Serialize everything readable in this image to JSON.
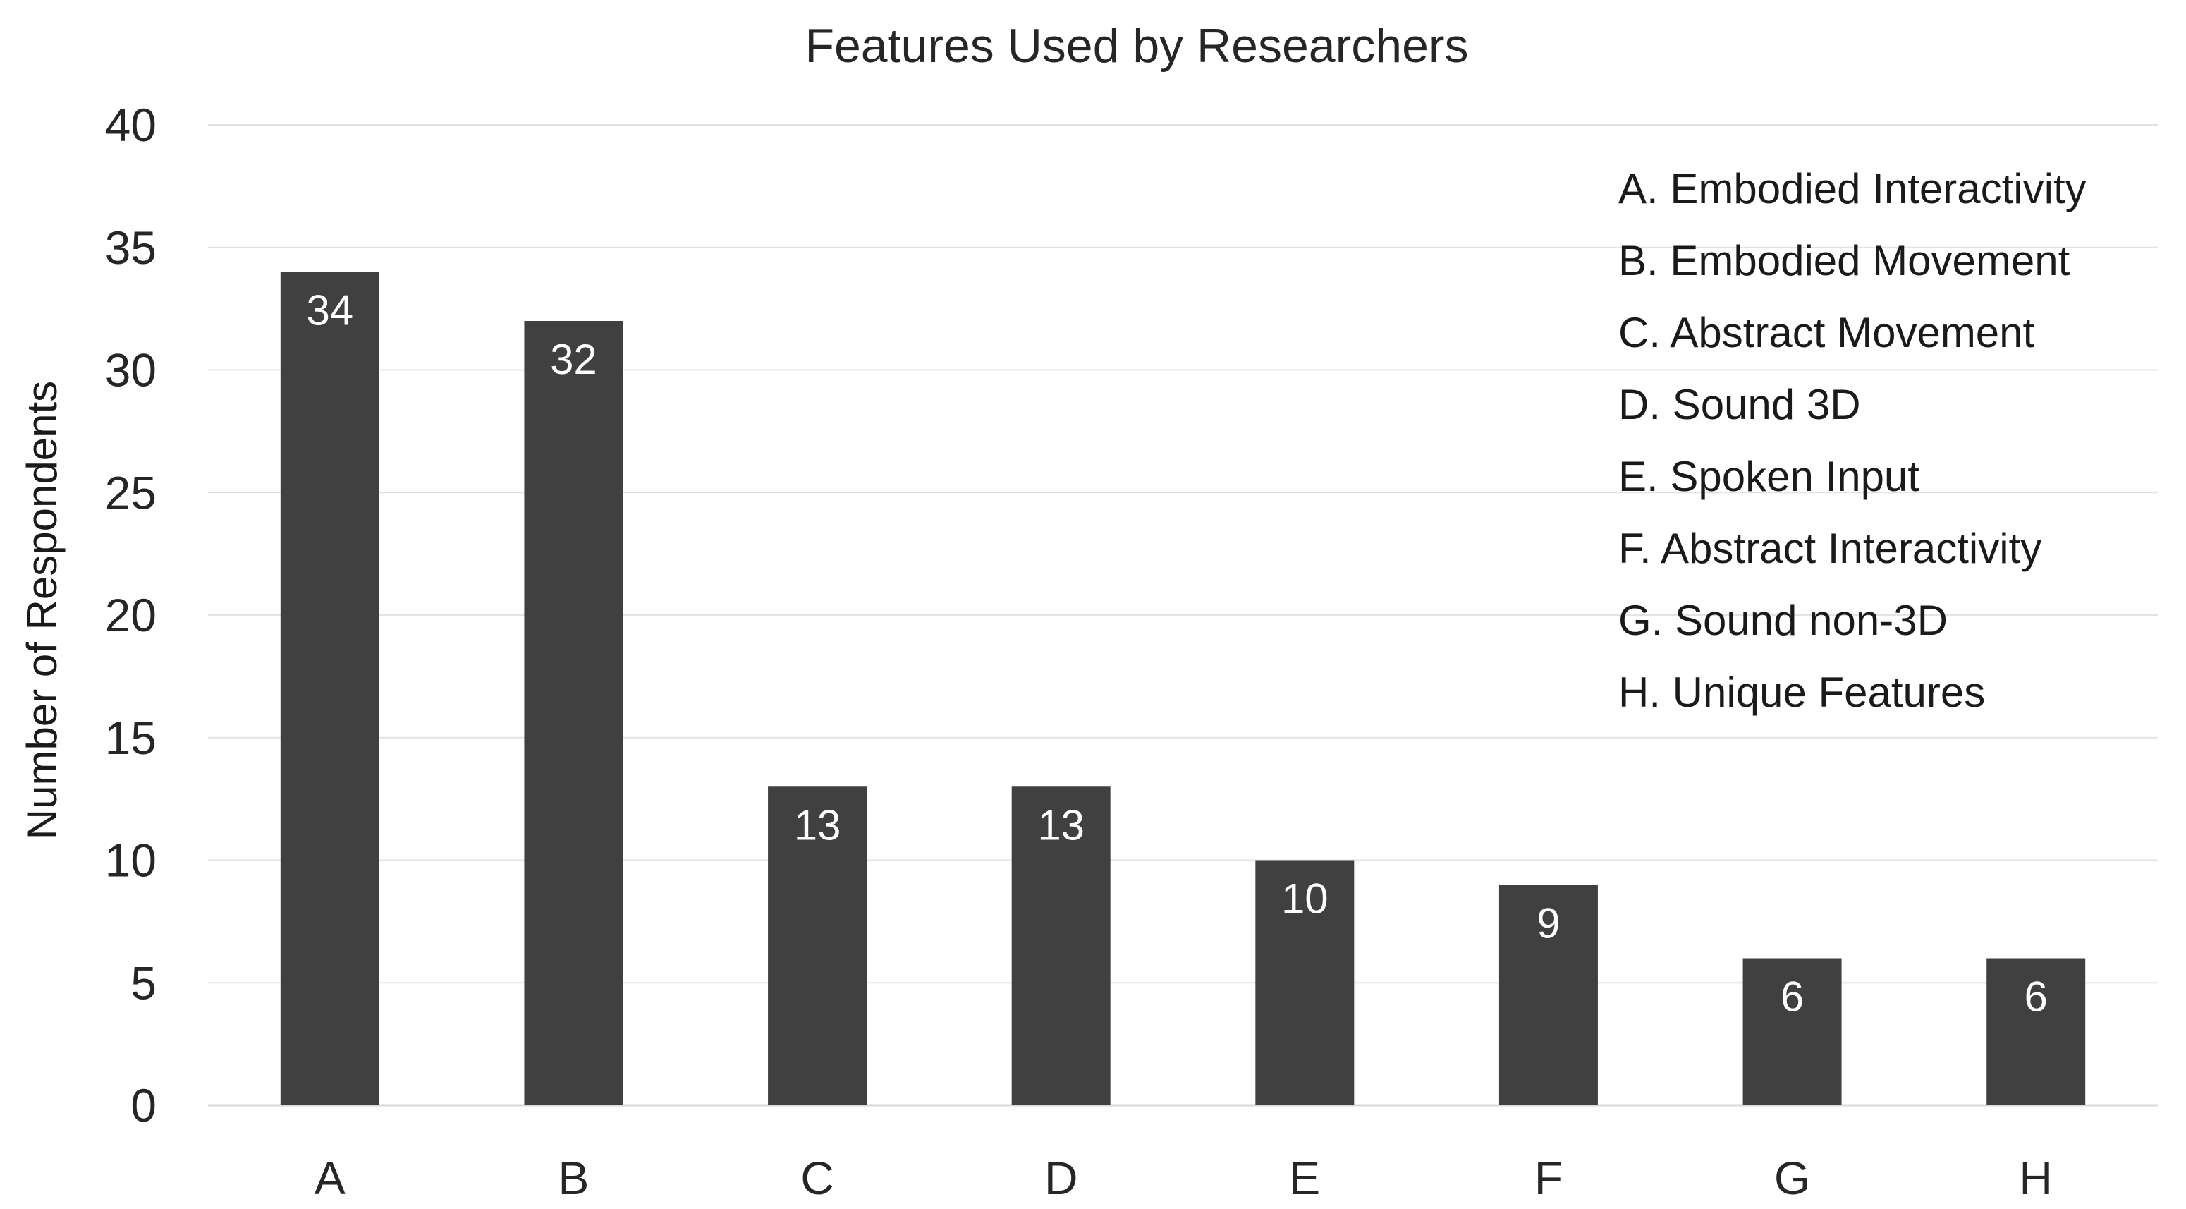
{
  "chart_data": {
    "type": "bar",
    "title": "Features Used by Researchers",
    "xlabel": "",
    "ylabel": "Number of Respondents",
    "categories": [
      "A",
      "B",
      "C",
      "D",
      "E",
      "F",
      "G",
      "H"
    ],
    "values": [
      34,
      32,
      13,
      13,
      10,
      9,
      6,
      6
    ],
    "ylim": [
      0,
      40
    ],
    "yticks": [
      "0",
      "5",
      "10",
      "15",
      "20",
      "25",
      "30",
      "35",
      "40"
    ],
    "grid": true,
    "data_labels": true,
    "bar_color": "#404040",
    "legend_position": "top-right",
    "legend": [
      "A. Embodied Interactivity",
      "B. Embodied Movement",
      "C. Abstract Movement",
      "D. Sound 3D",
      "E. Spoken Input",
      "F. Abstract Interactivity",
      "G. Sound non-3D",
      "H. Unique Features"
    ]
  }
}
